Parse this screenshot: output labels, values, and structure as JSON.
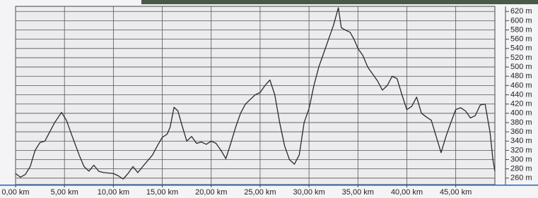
{
  "chart_data": {
    "type": "line",
    "x": [
      0,
      0.5,
      1.0,
      1.5,
      2.0,
      2.5,
      3.0,
      3.5,
      4.0,
      4.7,
      5.2,
      5.8,
      6.5,
      7.0,
      7.5,
      8.0,
      8.5,
      9.0,
      10.0,
      10.5,
      11.0,
      11.5,
      12.0,
      12.5,
      13.0,
      14.0,
      14.5,
      15.0,
      15.5,
      15.8,
      16.2,
      16.6,
      17.0,
      17.5,
      18.0,
      18.5,
      19.0,
      19.5,
      20.0,
      20.5,
      21.0,
      21.5,
      22.0,
      22.5,
      23.0,
      23.5,
      24.0,
      24.5,
      25.0,
      25.5,
      26.0,
      26.5,
      27.0,
      27.5,
      28.0,
      28.5,
      29.0,
      29.5,
      30.0,
      30.5,
      31.0,
      31.5,
      32.0,
      32.5,
      33.0,
      33.3,
      33.7,
      34.2,
      34.6,
      35.0,
      35.5,
      36.0,
      36.5,
      37.0,
      37.5,
      38.0,
      38.5,
      39.0,
      39.5,
      40.0,
      40.5,
      41.0,
      41.5,
      42.0,
      42.5,
      43.0,
      43.5,
      44.0,
      44.5,
      45.0,
      45.5,
      46.0,
      46.5,
      47.0,
      47.5,
      48.0,
      48.5,
      48.8,
      49.0
    ],
    "series": [
      {
        "color": "#2a2a2a",
        "values": [
          270,
          262,
          268,
          285,
          320,
          337,
          340,
          360,
          380,
          402,
          385,
          350,
          310,
          285,
          275,
          288,
          275,
          272,
          270,
          265,
          258,
          270,
          285,
          272,
          285,
          310,
          330,
          348,
          355,
          370,
          413,
          405,
          375,
          340,
          350,
          335,
          338,
          333,
          340,
          335,
          320,
          302,
          335,
          370,
          400,
          420,
          430,
          440,
          445,
          460,
          472,
          440,
          380,
          330,
          300,
          290,
          310,
          380,
          410,
          460,
          500,
          530,
          560,
          590,
          628,
          585,
          580,
          575,
          560,
          540,
          525,
          500,
          485,
          470,
          450,
          460,
          480,
          475,
          440,
          408,
          415,
          435,
          400,
          392,
          385,
          350,
          315,
          350,
          380,
          408,
          412,
          405,
          390,
          395,
          418,
          420,
          360,
          300,
          275
        ]
      }
    ],
    "xlim": [
      0,
      49
    ],
    "ylim": [
      246,
      631
    ],
    "xticks": [
      {
        "value": 0,
        "label": "0,00 km"
      },
      {
        "value": 5,
        "label": "5,00 km"
      },
      {
        "value": 10,
        "label": "10,00 km"
      },
      {
        "value": 15,
        "label": "15,00 km"
      },
      {
        "value": 20,
        "label": "20,00 km"
      },
      {
        "value": 25,
        "label": "25,00 km"
      },
      {
        "value": 30,
        "label": "30,00 km"
      },
      {
        "value": 35,
        "label": "35,00 km"
      },
      {
        "value": 40,
        "label": "40,00 km"
      },
      {
        "value": 45,
        "label": "45,00 km"
      }
    ],
    "yticks": [
      {
        "value": 260,
        "label": "260 m"
      },
      {
        "value": 280,
        "label": "280 m"
      },
      {
        "value": 300,
        "label": "300 m"
      },
      {
        "value": 320,
        "label": "320 m"
      },
      {
        "value": 340,
        "label": "340 m"
      },
      {
        "value": 360,
        "label": "360 m"
      },
      {
        "value": 380,
        "label": "380 m"
      },
      {
        "value": 400,
        "label": "400 m"
      },
      {
        "value": 420,
        "label": "420 m"
      },
      {
        "value": 440,
        "label": "440 m"
      },
      {
        "value": 460,
        "label": "460 m"
      },
      {
        "value": 480,
        "label": "480 m"
      },
      {
        "value": 500,
        "label": "500 m"
      },
      {
        "value": 520,
        "label": "520 m"
      },
      {
        "value": 540,
        "label": "540 m"
      },
      {
        "value": 560,
        "label": "560 m"
      },
      {
        "value": 580,
        "label": "580 m"
      },
      {
        "value": 600,
        "label": "600 m"
      },
      {
        "value": 620,
        "label": "620 m"
      }
    ],
    "grid": true
  }
}
